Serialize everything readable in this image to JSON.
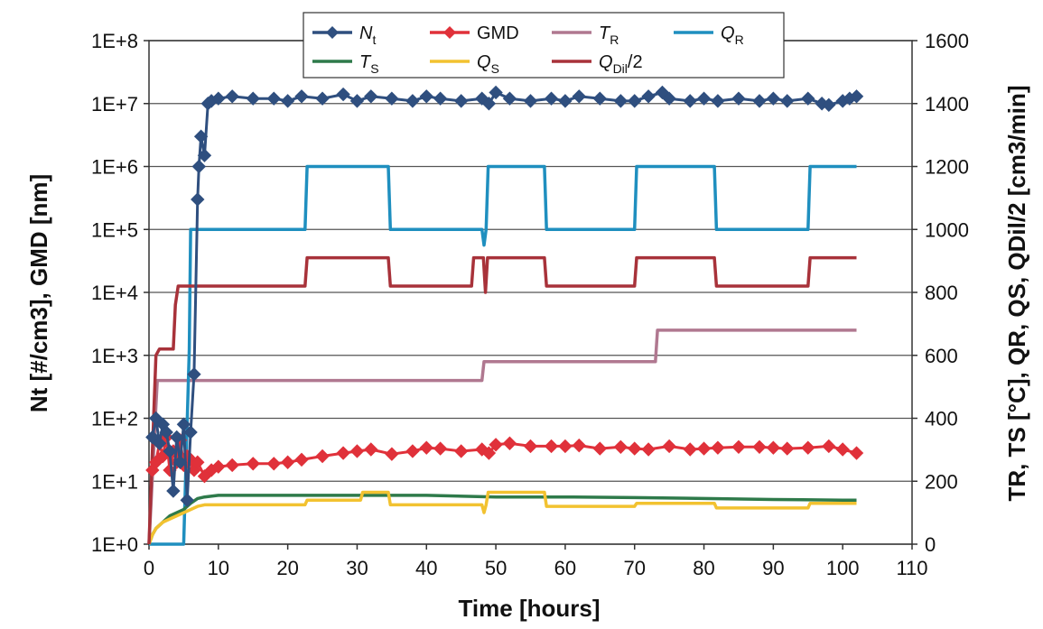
{
  "chart_data": {
    "type": "line",
    "xlabel": "Time [hours]",
    "ylabel_left": "Nt [#/cm3], GMD [nm]",
    "ylabel_right": "TR, TS [°C], QR, QS, QDil/2 [cm3/min]",
    "x_ticks": [
      "0",
      "10",
      "20",
      "30",
      "40",
      "50",
      "60",
      "70",
      "80",
      "90",
      "100",
      "110"
    ],
    "y_left_ticks": [
      "1E+0",
      "1E+1",
      "1E+2",
      "1E+3",
      "1E+4",
      "1E+5",
      "1E+6",
      "1E+7",
      "1E+8"
    ],
    "y_right_ticks": [
      "0",
      "200",
      "400",
      "600",
      "800",
      "1000",
      "1200",
      "1400",
      "1600"
    ],
    "xlim": [
      0,
      110
    ],
    "ylim_left": [
      1,
      100000000
    ],
    "ylim_right": [
      0,
      1600
    ],
    "y_left_scale": "log",
    "grid": "horizontal",
    "legend_placement": "top",
    "series": [
      {
        "name": "Nt",
        "axis": "left",
        "color": "#2f4f7f",
        "marker": "diamond",
        "x": [
          0.5,
          1,
          1.5,
          2,
          2.5,
          3,
          3.5,
          4,
          4.5,
          5,
          5.5,
          6,
          6.5,
          7,
          7.2,
          7.5,
          8,
          8.5,
          9,
          10,
          12,
          15,
          18,
          20,
          22,
          25,
          28,
          30,
          32,
          35,
          38,
          40,
          42,
          45,
          48,
          49,
          50,
          52,
          55,
          58,
          60,
          62,
          65,
          68,
          70,
          72,
          74,
          75,
          78,
          80,
          82,
          85,
          88,
          90,
          92,
          95,
          97,
          98,
          100,
          101,
          102
        ],
        "y": [
          50,
          100,
          40,
          80,
          60,
          30,
          7,
          50,
          20,
          80,
          5,
          60,
          500,
          300000,
          1000000,
          3000000,
          1500000,
          10000000,
          11000000,
          12000000,
          13000000,
          12000000,
          12000000,
          11000000,
          13000000,
          12000000,
          14000000,
          11000000,
          13000000,
          12000000,
          11000000,
          13000000,
          12000000,
          11000000,
          12000000,
          10000000,
          15000000,
          12000000,
          11000000,
          12000000,
          11000000,
          13000000,
          12000000,
          11000000,
          11000000,
          13000000,
          15000000,
          12000000,
          11000000,
          12000000,
          11000000,
          12000000,
          11000000,
          12000000,
          11000000,
          12000000,
          10000000,
          9500000,
          11000000,
          12000000,
          13000000
        ]
      },
      {
        "name": "GMD",
        "axis": "left",
        "color": "#e0313a",
        "marker": "diamond",
        "x": [
          0.5,
          1,
          1.5,
          2,
          2.5,
          3,
          3.5,
          4,
          4.5,
          5,
          5.5,
          6,
          6.5,
          7,
          8,
          9,
          10,
          12,
          15,
          18,
          20,
          22,
          25,
          28,
          30,
          32,
          35,
          38,
          40,
          42,
          45,
          48,
          49,
          50,
          52,
          55,
          58,
          60,
          62,
          65,
          68,
          70,
          72,
          75,
          78,
          80,
          82,
          85,
          88,
          90,
          92,
          95,
          98,
          100,
          102
        ],
        "y": [
          15,
          20,
          40,
          25,
          50,
          15,
          30,
          20,
          45,
          18,
          25,
          22,
          15,
          20,
          12,
          15,
          17,
          18,
          19,
          19,
          20,
          22,
          25,
          28,
          30,
          32,
          27,
          30,
          34,
          33,
          30,
          32,
          28,
          38,
          40,
          36,
          36,
          36,
          37,
          33,
          35,
          33,
          32,
          36,
          32,
          33,
          34,
          35,
          35,
          34,
          33,
          34,
          36,
          32,
          28
        ]
      },
      {
        "name": "TR",
        "axis": "right",
        "color": "#b07890",
        "marker": "none",
        "x": [
          0,
          0.3,
          1,
          1.2,
          48,
          48.3,
          73,
          73.3,
          102
        ],
        "y": [
          0,
          130,
          440,
          520,
          520,
          580,
          580,
          680,
          680
        ]
      },
      {
        "name": "QR",
        "axis": "right",
        "color": "#1f8fbf",
        "marker": "none",
        "x": [
          0,
          4.5,
          5,
          5.8,
          6,
          22.5,
          22.8,
          34.5,
          34.8,
          48,
          48.3,
          48.6,
          48.9,
          57,
          57.3,
          70,
          70.3,
          81.5,
          81.8,
          95,
          95.3,
          102
        ],
        "y": [
          0,
          0,
          0,
          620,
          1000,
          1000,
          1200,
          1200,
          1000,
          1000,
          950,
          1000,
          1200,
          1200,
          1000,
          1000,
          1200,
          1200,
          1000,
          1000,
          1200,
          1200
        ]
      },
      {
        "name": "TS",
        "axis": "right",
        "color": "#2e7a4a",
        "marker": "none",
        "x": [
          0,
          0.5,
          1,
          2,
          3,
          4,
          5,
          6,
          7,
          8,
          10,
          15,
          20,
          30,
          40,
          50,
          60,
          70,
          80,
          90,
          100,
          102
        ],
        "y": [
          0,
          30,
          50,
          70,
          90,
          100,
          110,
          130,
          145,
          150,
          155,
          155,
          155,
          155,
          155,
          150,
          150,
          148,
          145,
          142,
          140,
          140
        ]
      },
      {
        "name": "QS",
        "axis": "right",
        "color": "#f2c230",
        "marker": "none",
        "x": [
          0,
          0.5,
          1,
          2,
          3,
          4,
          5,
          6,
          7,
          8,
          22.5,
          22.8,
          30.5,
          30.8,
          34.5,
          34.8,
          48,
          48.3,
          48.6,
          48.9,
          57,
          57.3,
          70,
          70.3,
          81.5,
          81.8,
          95,
          95.3,
          102
        ],
        "y": [
          0,
          30,
          50,
          70,
          80,
          90,
          100,
          110,
          120,
          125,
          125,
          140,
          140,
          165,
          165,
          125,
          125,
          100,
          125,
          165,
          165,
          120,
          120,
          130,
          130,
          115,
          115,
          130,
          130
        ]
      },
      {
        "name": "QDil/2",
        "axis": "right",
        "color": "#a8323a",
        "marker": "none",
        "x": [
          0,
          0.5,
          1,
          1.5,
          3.5,
          3.8,
          4.2,
          22.5,
          22.8,
          34.5,
          34.8,
          46.5,
          46.8,
          48.2,
          48.5,
          48.8,
          57,
          57.3,
          70,
          70.3,
          81.5,
          81.8,
          95,
          95.3,
          102
        ],
        "y": [
          0,
          300,
          600,
          620,
          620,
          760,
          820,
          820,
          910,
          910,
          820,
          820,
          910,
          910,
          800,
          910,
          910,
          820,
          820,
          910,
          910,
          820,
          820,
          910,
          910
        ]
      }
    ]
  }
}
